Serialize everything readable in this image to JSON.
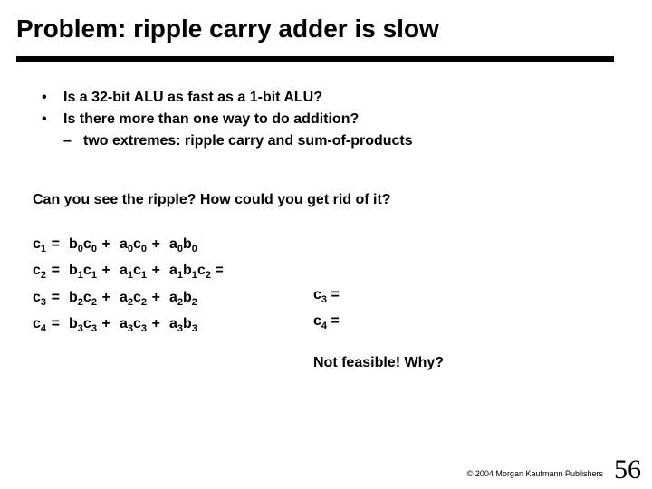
{
  "title": "Problem:  ripple carry adder is slow",
  "bullets": {
    "b1": "Is a 32-bit ALU as fast as a 1-bit ALU?",
    "b2": "Is there more than one way to do addition?",
    "b2_sub": "two extremes:  ripple carry and sum-of-products"
  },
  "question": "Can you see the ripple?  How could you get rid of it?",
  "not_feasible": "Not feasible!  Why?",
  "copyright": "© 2004 Morgan Kaufmann Publishers",
  "page_number": "56",
  "equations": {
    "c1": {
      "lhs_var": "c",
      "lhs_sub": "1",
      "t1v1": "b",
      "t1s1": "0",
      "t1v2": "c",
      "t1s2": "0",
      "t2v1": "a",
      "t2s1": "0",
      "t2v2": "c",
      "t2s2": "0",
      "t3v1": "a",
      "t3s1": "0",
      "t3v2": "b",
      "t3s2": "0",
      "tail": ""
    },
    "c2": {
      "lhs_var": "c",
      "lhs_sub": "2",
      "t1v1": "b",
      "t1s1": "1",
      "t1v2": "c",
      "t1s2": "1",
      "t2v1": "a",
      "t2s1": "1",
      "t2v2": "c",
      "t2s2": "1",
      "t3v1": "a",
      "t3s1": "1",
      "t3v2": "b",
      "t3s2": "1",
      "tail_v": "c",
      "tail_s": "2",
      "tail_post": " ="
    },
    "c3": {
      "lhs_var": "c",
      "lhs_sub": "3",
      "t1v1": "b",
      "t1s1": "2",
      "t1v2": "c",
      "t1s2": "2",
      "t2v1": "a",
      "t2s1": "2",
      "t2v2": "c",
      "t2s2": "2",
      "t3v1": "a",
      "t3s1": "2",
      "t3v2": "b",
      "t3s2": "2",
      "tail": ""
    },
    "c4": {
      "lhs_var": "c",
      "lhs_sub": "4",
      "t1v1": "b",
      "t1s1": "3",
      "t1v2": "c",
      "t1s2": "3",
      "t2v1": "a",
      "t2s1": "3",
      "t2v2": "c",
      "t2s2": "3",
      "t3v1": "a",
      "t3s1": "3",
      "t3v2": "b",
      "t3s2": "3",
      "tail": ""
    }
  },
  "rhs": {
    "r3": {
      "var": "c",
      "sub": "3",
      "post": " ="
    },
    "r4": {
      "var": "c",
      "sub": "4",
      "post": " ="
    }
  },
  "glyphs": {
    "bullet_dot": "•",
    "dash": "–",
    "eq": "=",
    "plus": "+"
  }
}
